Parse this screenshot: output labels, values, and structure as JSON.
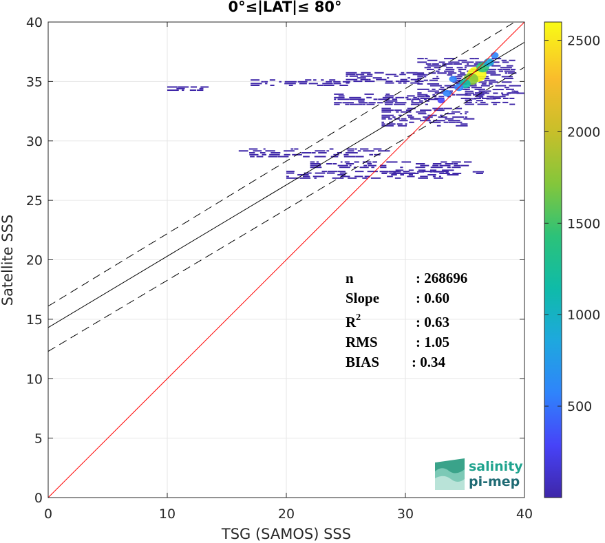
{
  "chart_data": {
    "type": "heatmap",
    "title": "0°≤|LAT|≤ 80°",
    "xlabel": "TSG (SAMOS) SSS",
    "ylabel": "Satellite SSS",
    "xlim": [
      0,
      40
    ],
    "ylim": [
      0,
      40
    ],
    "xticks": [
      "0",
      "10",
      "20",
      "30",
      "40"
    ],
    "yticks": [
      "0",
      "5",
      "10",
      "15",
      "20",
      "25",
      "30",
      "35",
      "40"
    ],
    "grid": true,
    "lines": {
      "identity": {
        "x": [
          0,
          40
        ],
        "y": [
          0,
          40
        ],
        "color": "#ff0000"
      },
      "fit": {
        "x": [
          0,
          40
        ],
        "y": [
          14.3,
          38.3
        ],
        "color": "#000000"
      },
      "fit_upper": {
        "x": [
          0,
          40
        ],
        "y": [
          16.1,
          40.5
        ],
        "color": "#000000",
        "dash": true
      },
      "fit_lower": {
        "x": [
          0,
          40
        ],
        "y": [
          12.3,
          36.2
        ],
        "color": "#000000",
        "dash": true
      }
    },
    "density": {
      "core": [
        {
          "x": 36,
          "y": 35.6,
          "count": 2600
        },
        {
          "x": 35.5,
          "y": 35.2,
          "count": 1800
        },
        {
          "x": 36.5,
          "y": 36.2,
          "count": 1400
        },
        {
          "x": 35,
          "y": 34.8,
          "count": 1100
        },
        {
          "x": 37,
          "y": 36.6,
          "count": 900
        },
        {
          "x": 34.5,
          "y": 34.5,
          "count": 700
        },
        {
          "x": 33.5,
          "y": 34,
          "count": 500
        },
        {
          "x": 34,
          "y": 35.2,
          "count": 450
        },
        {
          "x": 37.5,
          "y": 37.2,
          "count": 450
        },
        {
          "x": 33,
          "y": 33.4,
          "count": 350
        }
      ],
      "bands": [
        {
          "x0": 31,
          "x1": 39,
          "y0": 33.5,
          "y1": 37.0,
          "count": 60
        },
        {
          "x0": 25,
          "x1": 31,
          "y0": 34.8,
          "y1": 35.8,
          "count": 20
        },
        {
          "x0": 17,
          "x1": 25,
          "y0": 34.6,
          "y1": 35.2,
          "count": 5
        },
        {
          "x0": 10,
          "x1": 13,
          "y0": 34.2,
          "y1": 34.6,
          "count": 3
        },
        {
          "x0": 24,
          "x1": 32,
          "y0": 33.0,
          "y1": 34.0,
          "count": 15
        },
        {
          "x0": 28,
          "x1": 35,
          "y0": 31.2,
          "y1": 32.8,
          "count": 15
        },
        {
          "x0": 16,
          "x1": 28,
          "y0": 28.6,
          "y1": 29.4,
          "count": 8
        },
        {
          "x0": 22,
          "x1": 35,
          "y0": 27.7,
          "y1": 28.3,
          "count": 8
        },
        {
          "x0": 20,
          "x1": 34,
          "y0": 26.8,
          "y1": 27.5,
          "count": 6
        },
        {
          "x0": 28,
          "x1": 36,
          "y0": 27.2,
          "y1": 27.6,
          "count": 4
        },
        {
          "x0": 35,
          "y0": 33.0,
          "x1": 39.5,
          "y1": 34.4,
          "count": 25
        }
      ]
    },
    "colorbar": {
      "range": [
        0,
        2600
      ],
      "ticks": [
        "500",
        "1000",
        "1500",
        "2000",
        "2500"
      ],
      "colors": [
        "#3e26a8",
        "#4743f8",
        "#2f84fb",
        "#1ea8de",
        "#0fbba8",
        "#2cc279",
        "#84c63b",
        "#c8bf2a",
        "#f9bc2c",
        "#f9fb15"
      ]
    },
    "stats": {
      "n_label": "n",
      "n_value": ": 268696",
      "slope_label": "Slope",
      "slope_value": ": 0.60",
      "r2_label": "R",
      "r2_exp": "2",
      "r2_value": ": 0.63",
      "rms_label": "RMS",
      "rms_value": ": 1.05",
      "bias_label": "BIAS",
      "bias_value": ": 0.34"
    }
  },
  "logo": {
    "line1": "salinity",
    "line2": "pi-mep"
  }
}
